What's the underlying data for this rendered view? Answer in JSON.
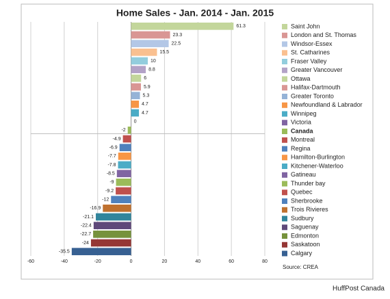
{
  "chart_data": {
    "type": "hbar",
    "title": "Home Sales - Jan. 2014 - Jan. 2015",
    "categories": [
      "Saint John",
      "London and St. Thomas",
      "Windsor-Essex",
      "St. Catharines",
      "Fraser Valley",
      "Greater Vancouver",
      "Ottawa",
      "Halifax-Dartmouth",
      "Greater Toronto",
      "Newfoundland & Labrador",
      "Winnipeg",
      "Victoria",
      "Canada",
      "Montreal",
      "Regina",
      "Hamilton-Burlington",
      "Kitchener-Waterloo",
      "Gatineau",
      "Thunder bay",
      "Quebec",
      "Sherbrooke",
      "Trois Rivieres",
      "Sudbury",
      "Saguenay",
      "Edmonton",
      "Saskatoon",
      "Calgary"
    ],
    "values": [
      61.3,
      23.3,
      22.5,
      15.5,
      10,
      8.8,
      6,
      5.9,
      5.3,
      4.7,
      4.7,
      0,
      -2,
      -4.9,
      -6.9,
      -7.7,
      -7.8,
      -8.5,
      -9,
      -9.2,
      -12,
      -16.9,
      -21.1,
      -22.4,
      -22.7,
      -24,
      -35.5
    ],
    "colors": [
      "#c3d69b",
      "#d99694",
      "#b3c7e6",
      "#fac090",
      "#93cddd",
      "#b3a2c7",
      "#c3d69b",
      "#d99694",
      "#95b3d7",
      "#f79646",
      "#4bacc6",
      "#8064a2",
      "#9bbb59",
      "#c0504d",
      "#4f81bd",
      "#f79646",
      "#4bacc6",
      "#8064a2",
      "#9bbb59",
      "#c0504d",
      "#4f81bd",
      "#c0712f",
      "#31859c",
      "#5f497a",
      "#76923c",
      "#953735",
      "#376092"
    ],
    "bold_category": "Canada",
    "xlim": [
      -60,
      80
    ],
    "xticks": [
      -60,
      -40,
      -20,
      0,
      20,
      40,
      60,
      80
    ],
    "grid": true,
    "source": "Source: CREA",
    "credit": "HuffPost Canada"
  }
}
